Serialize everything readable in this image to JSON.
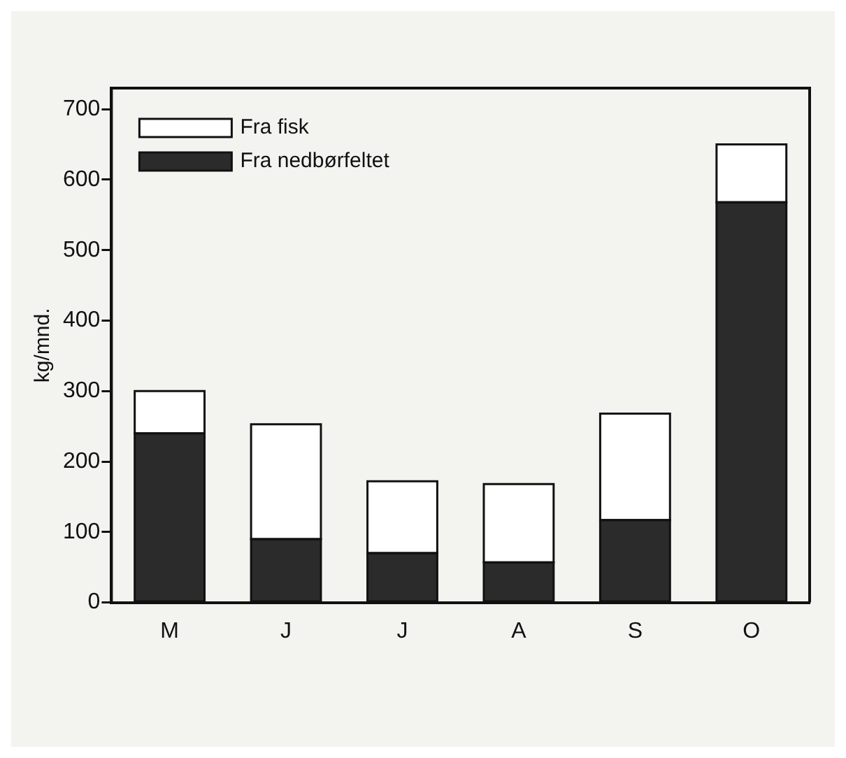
{
  "chart_data": {
    "type": "bar",
    "ylabel": "kg/mnd.",
    "categories": [
      "M",
      "J",
      "J",
      "A",
      "S",
      "O"
    ],
    "stacked": true,
    "ylim": [
      0,
      730
    ],
    "yticks": [
      0,
      100,
      200,
      300,
      400,
      500,
      600,
      700
    ],
    "grid": false,
    "legend": "top left",
    "series": [
      {
        "name": "Fra nedbørfeltet",
        "color": "#2b2b2b",
        "values": [
          240,
          90,
          70,
          57,
          117,
          568
        ]
      },
      {
        "name": "Fra fisk",
        "color": "#ffffff",
        "values": [
          60,
          163,
          102,
          111,
          151,
          82
        ]
      }
    ]
  }
}
